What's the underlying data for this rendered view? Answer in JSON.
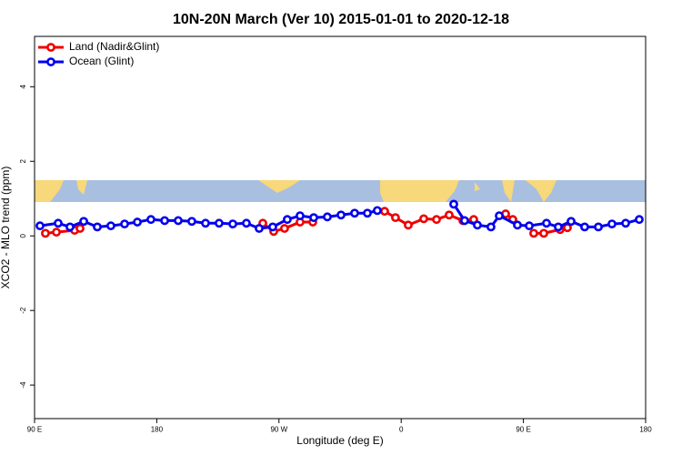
{
  "chart_data": {
    "type": "line",
    "title": "10N-20N March (Ver 10)   2015-01-01 to 2020-12-18",
    "x_label": "Longitude (deg E)",
    "y_label": "XCO2 - MLO trend (ppm)",
    "xlim": [
      90,
      540
    ],
    "ylim": [
      -4.9,
      5.35
    ],
    "xticks": [
      {
        "value": 90,
        "label": "90 E"
      },
      180,
      {
        "value": 270,
        "label": "90 W"
      },
      {
        "value": 360,
        "label": "0"
      },
      {
        "value": 450,
        "label": "90 E"
      },
      {
        "value": 540,
        "label": "180"
      }
    ],
    "yticks": [
      -4,
      -2,
      0,
      2,
      4
    ],
    "legend": "top-left",
    "series": [
      {
        "name": "Land (Nadir&Glint)",
        "color": "#ee0000",
        "x": [
          98.0,
          106.1,
          119.5,
          123.5,
          null,
          258.1,
          266.1,
          274.1,
          285.5,
          294.9,
          null,
          347.8,
          355.8,
          365.2,
          376.6,
          386.0,
          395.3,
          405.4,
          413.4,
          null,
          436.9,
          442.2,
          null,
          457.6,
          465.0,
          477.0,
          482.4
        ],
        "values": [
          0.07,
          0.1,
          0.15,
          0.2,
          null,
          0.34,
          0.12,
          0.2,
          0.37,
          0.37,
          null,
          0.66,
          0.49,
          0.29,
          0.46,
          0.44,
          0.56,
          0.41,
          0.44,
          null,
          0.59,
          0.44,
          null,
          0.07,
          0.07,
          0.17,
          0.22
        ]
      },
      {
        "name": "Ocean (Glint)",
        "color": "#0000ee",
        "x": [
          94.0,
          107.4,
          116.1,
          126.2,
          136.2,
          146.2,
          156.3,
          165.7,
          175.7,
          185.8,
          195.8,
          205.8,
          215.9,
          225.9,
          236.0,
          246.0,
          255.4,
          265.4,
          276.1,
          285.5,
          295.6,
          305.6,
          315.7,
          325.7,
          335.1,
          342.4,
          null,
          398.7,
          406.7,
          416.1,
          426.1,
          432.2,
          445.6,
          454.3,
          467.0,
          475.7,
          485.1,
          495.1,
          505.2,
          515.2,
          525.3,
          535.3
        ],
        "values": [
          0.27,
          0.34,
          0.24,
          0.39,
          0.24,
          0.27,
          0.32,
          0.37,
          0.44,
          0.41,
          0.41,
          0.39,
          0.34,
          0.34,
          0.32,
          0.34,
          0.2,
          0.24,
          0.44,
          0.54,
          0.49,
          0.51,
          0.56,
          0.61,
          0.61,
          0.68,
          null,
          0.85,
          0.41,
          0.29,
          0.24,
          0.54,
          0.29,
          0.27,
          0.34,
          0.24,
          0.39,
          0.24,
          0.24,
          0.32,
          0.34,
          0.44
        ]
      }
    ]
  }
}
